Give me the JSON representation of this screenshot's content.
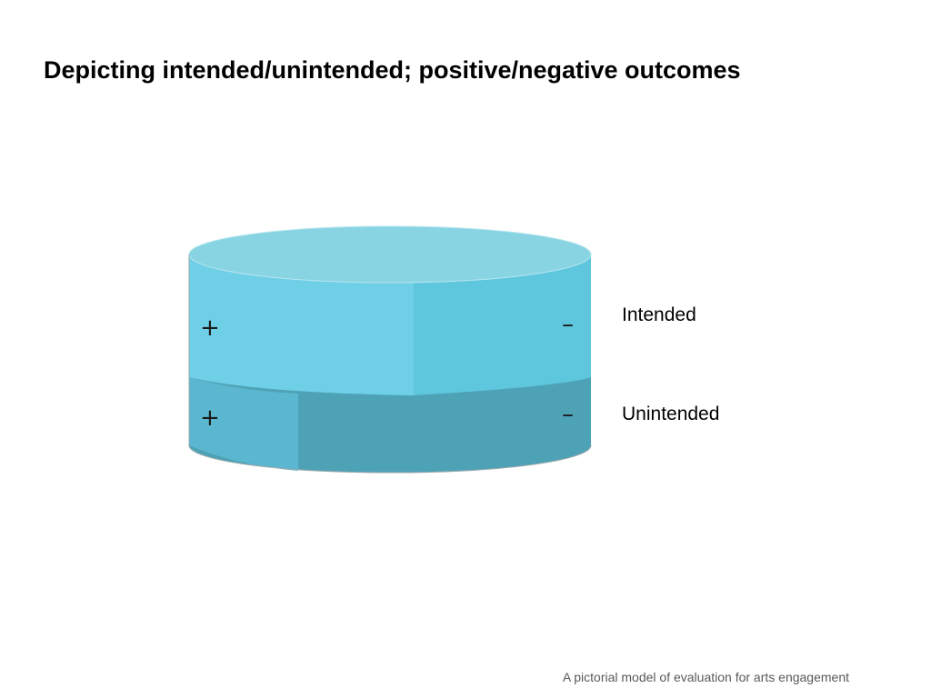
{
  "slide": {
    "title": "Depicting intended/unintended; positive/negative outcomes",
    "footer": "A pictorial model of evaluation for arts engagement"
  },
  "diagram": {
    "layers": [
      {
        "label": "Intended",
        "positive_symbol": "+",
        "negative_symbol": "–"
      },
      {
        "label": "Unintended",
        "positive_symbol": "+",
        "negative_symbol": "–"
      }
    ],
    "colors": {
      "top_face": "#89d4e3",
      "intended_positive": "#6fcfe6",
      "intended_negative": "#5ec6dd",
      "unintended_positive": "#5bb7cf",
      "unintended_negative": "#4ea2b6",
      "edge": "#9aa8ad"
    }
  }
}
